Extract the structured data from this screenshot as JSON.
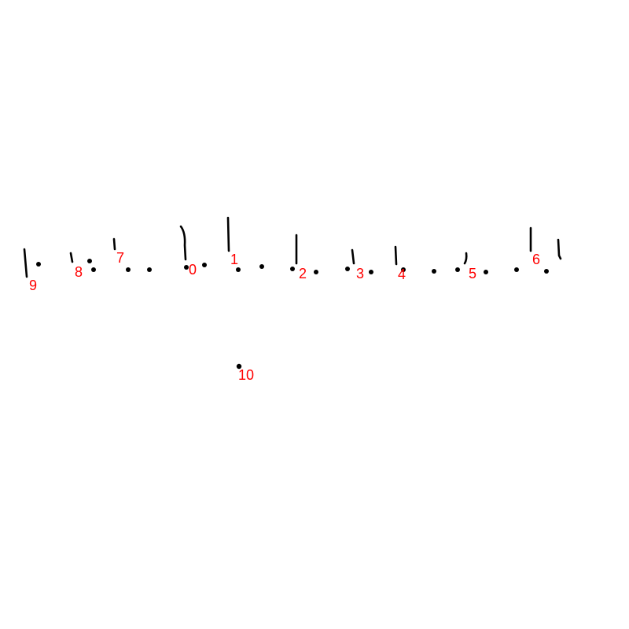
{
  "canvas": {
    "background": "#ffffff",
    "ink_color": "#000000",
    "label_color": "#ff0000"
  },
  "labels": {
    "l0": "0",
    "l1": "1",
    "l2": "2",
    "l3": "3",
    "l4": "4",
    "l5": "5",
    "l6": "6",
    "l7": "7",
    "l8": "8",
    "l9": "9",
    "l10": "10"
  }
}
